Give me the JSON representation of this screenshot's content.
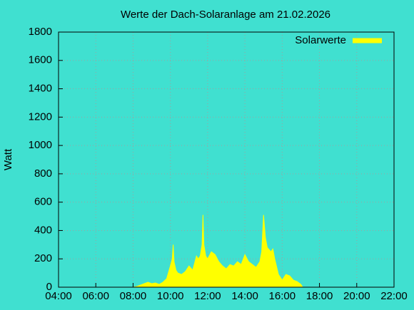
{
  "chart_data": {
    "type": "area",
    "title": "Werte der Dach-Solaranlage am 21.02.2026",
    "y_label": "Watt",
    "x": [
      8.0,
      8.2,
      8.4,
      8.6,
      8.8,
      9.0,
      9.2,
      9.4,
      9.6,
      9.8,
      10.0,
      10.1,
      10.15,
      10.2,
      10.3,
      10.4,
      10.6,
      10.8,
      11.0,
      11.2,
      11.4,
      11.5,
      11.6,
      11.7,
      11.75,
      11.8,
      11.9,
      12.0,
      12.2,
      12.4,
      12.6,
      12.8,
      13.0,
      13.2,
      13.4,
      13.6,
      13.8,
      14.0,
      14.2,
      14.4,
      14.6,
      14.8,
      14.9,
      15.0,
      15.1,
      15.2,
      15.4,
      15.5,
      15.6,
      15.8,
      16.0,
      16.2,
      16.4,
      16.6,
      16.8,
      17.0,
      17.1
    ],
    "series": [
      {
        "name": "Solarwerte",
        "color": "#ffff00",
        "values": [
          0,
          5,
          15,
          25,
          35,
          25,
          30,
          20,
          35,
          60,
          150,
          200,
          300,
          180,
          120,
          100,
          90,
          110,
          150,
          120,
          220,
          200,
          220,
          300,
          510,
          300,
          220,
          200,
          250,
          230,
          180,
          150,
          130,
          160,
          150,
          180,
          160,
          230,
          180,
          160,
          140,
          180,
          250,
          510,
          350,
          280,
          250,
          270,
          200,
          90,
          50,
          90,
          80,
          50,
          40,
          20,
          0
        ]
      }
    ],
    "xlim": [
      4,
      22
    ],
    "xticks": [
      {
        "value": 4,
        "label": "04:00"
      },
      {
        "value": 6,
        "label": "06:00"
      },
      {
        "value": 8,
        "label": "08:00"
      },
      {
        "value": 10,
        "label": "10:00"
      },
      {
        "value": 12,
        "label": "12:00"
      },
      {
        "value": 14,
        "label": "14:00"
      },
      {
        "value": 16,
        "label": "16:00"
      },
      {
        "value": 18,
        "label": "18:00"
      },
      {
        "value": 20,
        "label": "20:00"
      },
      {
        "value": 22,
        "label": "22:00"
      }
    ],
    "ylim": [
      0,
      1800
    ],
    "yticks": [
      0,
      200,
      400,
      600,
      800,
      1000,
      1200,
      1400,
      1600,
      1800
    ],
    "grid": true,
    "legend": "top-right"
  }
}
